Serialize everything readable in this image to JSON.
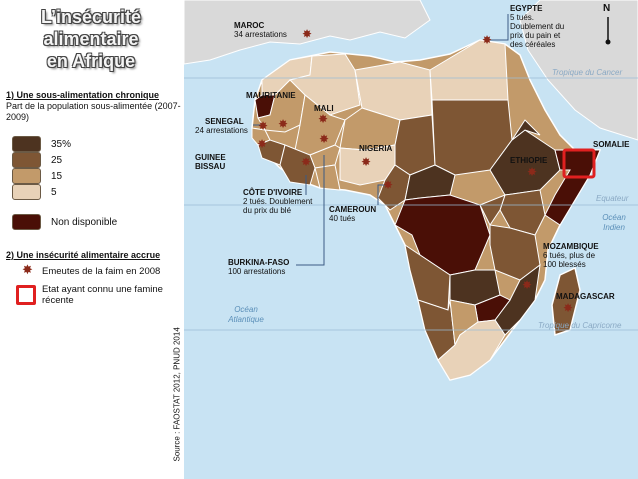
{
  "title": {
    "line1": "L’insécurité",
    "line2": "alimentaire",
    "line3": "en Afrique"
  },
  "section1": {
    "heading": "1) Une sous-alimentation chronique",
    "subtitle": "Part de la population sous-alimentée (2007-2009)",
    "legend": [
      {
        "label": "35%",
        "color": "#4d3320"
      },
      {
        "label": "25",
        "color": "#7e5634"
      },
      {
        "label": "15",
        "color": "#c29a6a"
      },
      {
        "label": "5",
        "color": "#e8d2b8"
      },
      {
        "label": "Non disponible",
        "color": "#4a0f06"
      }
    ]
  },
  "section2": {
    "heading": "2) Une insécurité alimentaire accrue",
    "riots_label": "Emeutes de la faim en 2008",
    "famine_label": "Etat ayant connu une famine récente",
    "riot_color": "#8b2a1a",
    "famine_color": "#e02020"
  },
  "source": "Source : FAOSTAT 2012, PNUD 2014",
  "north": "N",
  "oceans": {
    "atlantic": "Océan Atlantique",
    "indian": "Océan Indien"
  },
  "lines": {
    "cancer": "Tropique du Cancer",
    "equator": "Equateur",
    "capricorn": "Tropique du Capricorne"
  },
  "countries": {
    "egypte": {
      "name": "EGYPTE",
      "note": "5 tués. Doublement du prix du pain et des céréales"
    },
    "maroc": {
      "name": "MAROC",
      "note": "34 arrestations"
    },
    "mauritanie": {
      "name": "MAURITANIE"
    },
    "mali": {
      "name": "MALI"
    },
    "senegal": {
      "name": "SENEGAL",
      "note": "24 arrestations"
    },
    "guinee": {
      "name": "GUINEE BISSAU"
    },
    "nigeria": {
      "name": "NIGERIA"
    },
    "ethiopie": {
      "name": "ETHIOPIE"
    },
    "somalie": {
      "name": "SOMALIE"
    },
    "cote": {
      "name": "CÔTE D'IVOIRE",
      "note": "2 tués. Doublement du prix du blé"
    },
    "cameroun": {
      "name": "CAMEROUN",
      "note": "40 tués"
    },
    "burkina": {
      "name": "BURKINA-FASO",
      "note": "100 arrestations"
    },
    "mozambique": {
      "name": "MOZAMBIQUE",
      "note": "6 tués, plus de 100 blessés"
    },
    "madagascar": {
      "name": "MADAGASCAR"
    }
  }
}
